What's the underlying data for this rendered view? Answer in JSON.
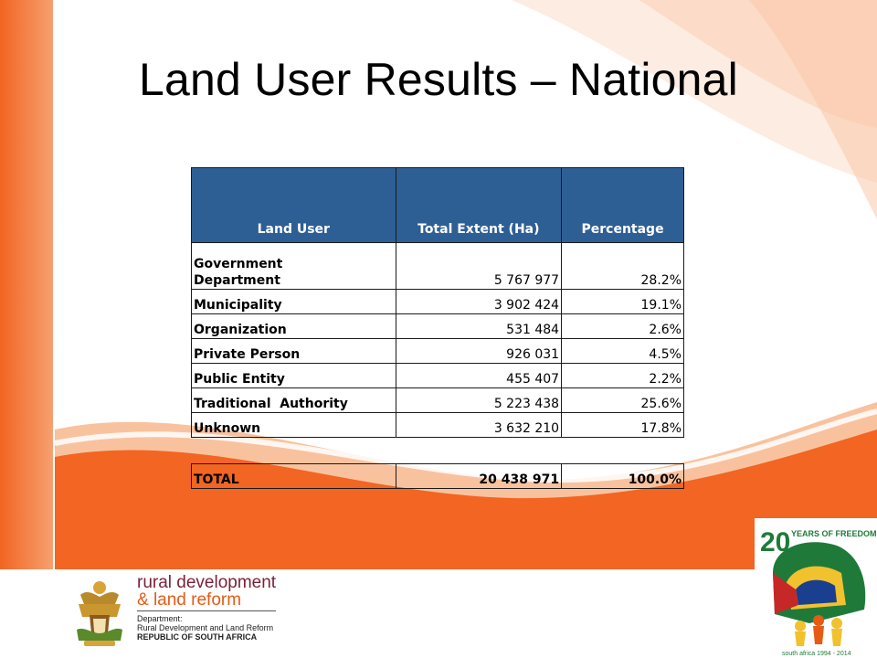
{
  "slide": {
    "title": "Land User Results – National"
  },
  "table": {
    "headers": [
      "Land User",
      "Total Extent (Ha)",
      "Percentage"
    ],
    "rows": [
      {
        "label_line1": "Government",
        "label_line2": "Department",
        "extent": "5 767 977",
        "percentage": "28.2%"
      },
      {
        "label": "Municipality",
        "extent": "3 902 424",
        "percentage": "19.1%"
      },
      {
        "label": "Organization",
        "extent": "531 484",
        "percentage": "2.6%"
      },
      {
        "label": "Private Person",
        "extent": "926 031",
        "percentage": "4.5%"
      },
      {
        "label": "Public Entity",
        "extent": "455 407",
        "percentage": "2.2%"
      },
      {
        "label": "Traditional  Authority",
        "extent": "5 223 438",
        "percentage": "25.6%"
      },
      {
        "label": "Unknown",
        "extent": "3 632 210",
        "percentage": "17.8%"
      }
    ],
    "total": {
      "label": "TOTAL",
      "extent": "20 438 971",
      "percentage": "100.0%"
    }
  },
  "footer": {
    "dept_line1": "rural development",
    "dept_line2": "& land reform",
    "dept_small1": "Department:",
    "dept_small2": "Rural Development and Land Reform",
    "dept_small3": "REPUBLIC OF SOUTH AFRICA",
    "badge_number": "20",
    "badge_text": "YEARS OF FREEDOM",
    "badge_sub": "south africa 1994 - 2014"
  },
  "colors": {
    "orange": "#f26522",
    "header_blue": "#2e5f94",
    "dept_maroon": "#7a1f3a"
  },
  "icons": [
    "coat-of-arms-logo",
    "twenty-years-of-freedom-logo"
  ]
}
